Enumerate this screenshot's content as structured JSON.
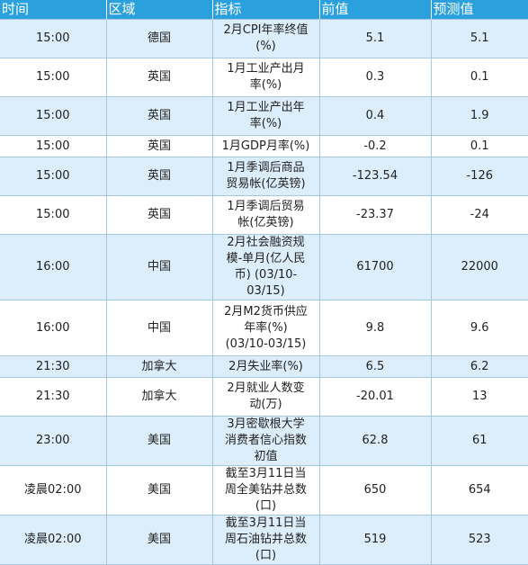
{
  "headers": [
    "时间",
    "区域",
    "指标",
    "前值",
    "预测值"
  ],
  "rows": [
    {
      "time": "15:00",
      "region": "德国",
      "indicator": "2月CPI年率终值(%)",
      "prev": "5.1",
      "forecast": "5.1"
    },
    {
      "time": "15:00",
      "region": "英国",
      "indicator": "1月工业产出月率(%)",
      "prev": "0.3",
      "forecast": "0.1"
    },
    {
      "time": "15:00",
      "region": "英国",
      "indicator": "1月工业产出年率(%)",
      "prev": "0.4",
      "forecast": "1.9"
    },
    {
      "time": "15:00",
      "region": "英国",
      "indicator": "1月GDP月率(%)",
      "prev": "-0.2",
      "forecast": "0.1"
    },
    {
      "time": "15:00",
      "region": "英国",
      "indicator": "1月季调后商品贸易帐(亿英镑)",
      "prev": "-123.54",
      "forecast": "-126"
    },
    {
      "time": "15:00",
      "region": "英国",
      "indicator": "1月季调后贸易帐(亿英镑)",
      "prev": "-23.37",
      "forecast": "-24"
    },
    {
      "time": "16:00",
      "region": "中国",
      "indicator": "2月社会融资规模-单月(亿人民币) (03/10-03/15)",
      "prev": "61700",
      "forecast": "22000"
    },
    {
      "time": "16:00",
      "region": "中国",
      "indicator": "2月M2货币供应年率(%) (03/10-03/15)",
      "prev": "9.8",
      "forecast": "9.6"
    },
    {
      "time": "21:30",
      "region": "加拿大",
      "indicator": "2月失业率(%)",
      "prev": "6.5",
      "forecast": "6.2"
    },
    {
      "time": "21:30",
      "region": "加拿大",
      "indicator": "2月就业人数变动(万)",
      "prev": "-20.01",
      "forecast": "13"
    },
    {
      "time": "23:00",
      "region": "美国",
      "indicator": "3月密歇根大学消费者信心指数初值",
      "prev": "62.8",
      "forecast": "61"
    },
    {
      "time": "凌晨02:00",
      "region": "美国",
      "indicator": "截至3月11日当周全美钻井总数(口)",
      "prev": "650",
      "forecast": "654"
    },
    {
      "time": "凌晨02:00",
      "region": "美国",
      "indicator": "截至3月11日当周石油钻井总数(口)",
      "prev": "519",
      "forecast": "523"
    }
  ]
}
